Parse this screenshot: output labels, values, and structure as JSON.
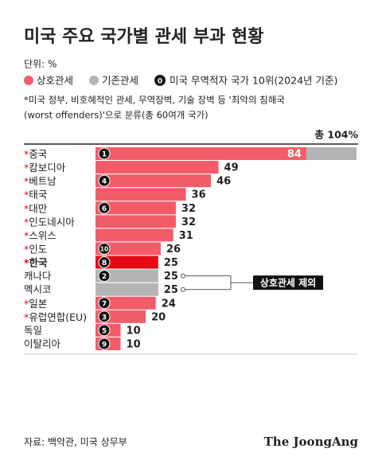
{
  "chart_data": {
    "type": "bar",
    "orientation": "horizontal",
    "stacked": true,
    "title": "미국 주요 국가별 관세 부과 현황",
    "unit": "단위: %",
    "note": [
      "*미국 정부, 비호혜적인 관세, 무역장벽, 기술 장벽 등 '최악의 침해국",
      "(worst offenders)'으로 분류(총 60여개 국가)"
    ],
    "total_label": "총 104%",
    "categories": [
      "*중국",
      "*캄보디아",
      "*베트남",
      "*태국",
      "*대만",
      "*인도네시아",
      "*스위스",
      "*인도",
      "*한국",
      "캐나다",
      "멕시코",
      "*일본",
      "*유럽연합(EU)",
      "독일",
      "이탈리아"
    ],
    "series": [
      {
        "name": "상호관세",
        "color": "#f25c68",
        "highlight_category": "*한국",
        "highlight_color": "#e50914",
        "values": [
          84,
          49,
          46,
          36,
          32,
          32,
          31,
          26,
          25,
          null,
          null,
          24,
          20,
          10,
          10
        ]
      },
      {
        "name": "기존관세",
        "color": "#b4b4b4",
        "values": [
          20,
          null,
          null,
          null,
          null,
          null,
          null,
          null,
          null,
          25,
          25,
          null,
          null,
          null,
          null
        ]
      }
    ],
    "rank_legend": {
      "symbol": "0",
      "label": "미국 무역적자 국가 10위(2024년 기준)"
    },
    "ranks": [
      1,
      null,
      4,
      null,
      6,
      null,
      null,
      10,
      8,
      2,
      null,
      7,
      3,
      5,
      9
    ],
    "annotation": "상호관세 제외",
    "xlim": [
      0,
      104
    ],
    "source": "자료: 백악관, 미국 상무부",
    "brand": "The JoongAng"
  }
}
